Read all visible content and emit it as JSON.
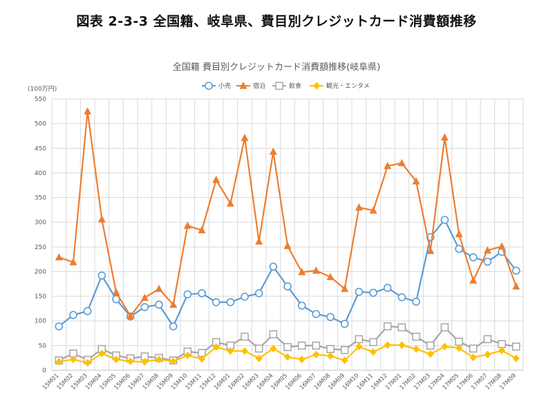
{
  "page_title": "図表 2-3-3 全国籍、岐阜県、費目別クレジットカード消費額推移",
  "chart_data": {
    "type": "line",
    "title": "全国籍 費目別クレジットカード消費額推移(岐阜県)",
    "unit_label": "(100万円)",
    "ylim": [
      0,
      550
    ],
    "y_ticks": [
      0,
      50,
      100,
      150,
      200,
      250,
      300,
      350,
      400,
      450,
      500,
      550
    ],
    "grid": true,
    "legend_position": "top",
    "categories": [
      "15M01",
      "15M02",
      "15M03",
      "15M04",
      "15M05",
      "15M06",
      "15M07",
      "15M08",
      "15M09",
      "15M10",
      "15M11",
      "15M12",
      "16M01",
      "16M02",
      "16M03",
      "16M04",
      "16M05",
      "16M06",
      "16M07",
      "16M08",
      "16M09",
      "16M10",
      "16M11",
      "16M12",
      "17M01",
      "17M02",
      "17M03",
      "17M04",
      "17M05",
      "17M06",
      "17M07",
      "17M08",
      "17M09"
    ],
    "series": [
      {
        "name": "小売",
        "color": "#5B9BD5",
        "marker": "circle",
        "values": [
          89,
          112,
          120,
          192,
          144,
          109,
          128,
          133,
          89,
          154,
          156,
          138,
          138,
          149,
          156,
          210,
          170,
          131,
          114,
          108,
          94,
          159,
          157,
          167,
          148,
          139,
          270,
          305,
          246,
          229,
          220,
          240,
          202
        ]
      },
      {
        "name": "宿泊",
        "color": "#ED7D31",
        "marker": "triangle",
        "values": [
          229,
          219,
          525,
          306,
          158,
          110,
          147,
          165,
          133,
          293,
          284,
          386,
          338,
          471,
          261,
          443,
          252,
          199,
          202,
          189,
          165,
          330,
          324,
          414,
          420,
          383,
          242,
          472,
          276,
          182,
          243,
          251,
          170
        ]
      },
      {
        "name": "飲食",
        "color": "#A5A5A5",
        "marker": "square",
        "values": [
          20,
          34,
          21,
          43,
          30,
          24,
          28,
          25,
          20,
          38,
          35,
          57,
          50,
          68,
          44,
          73,
          47,
          50,
          50,
          43,
          41,
          63,
          57,
          89,
          87,
          68,
          50,
          87,
          58,
          44,
          63,
          53,
          48
        ]
      },
      {
        "name": "観光・エンタメ",
        "color": "#FFC000",
        "marker": "diamond",
        "values": [
          17,
          22,
          15,
          34,
          22,
          18,
          17,
          22,
          18,
          30,
          23,
          47,
          39,
          39,
          24,
          44,
          27,
          22,
          32,
          29,
          20,
          48,
          37,
          51,
          51,
          43,
          33,
          48,
          45,
          26,
          32,
          40,
          24
        ]
      }
    ]
  }
}
